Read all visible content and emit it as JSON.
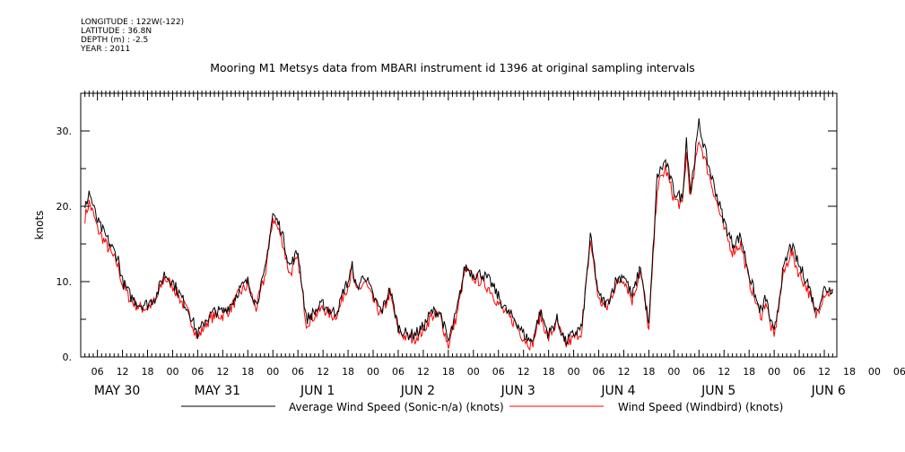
{
  "meta": {
    "longitude": "LONGITUDE : 122W(-122)",
    "latitude": "LATITUDE : 36.8N",
    "depth": "DEPTH (m) : -2.5",
    "year": "YEAR : 2011"
  },
  "chart_data": {
    "type": "line",
    "title": "Mooring M1 Metsys data from MBARI instrument id 1396 at original sampling intervals",
    "ylabel": "knots",
    "xlabel": "",
    "ylim": [
      0,
      35
    ],
    "yticks": [
      0,
      10,
      20,
      30
    ],
    "ytick_labels": [
      "0.",
      "10.",
      "20.",
      "30."
    ],
    "xlim_hours": [
      2,
      183
    ],
    "hour_tick_labels": [
      "06",
      "12",
      "18",
      "00",
      "06",
      "12",
      "18",
      "00",
      "06",
      "12",
      "18",
      "00",
      "06",
      "12",
      "18",
      "00",
      "06",
      "12",
      "18",
      "00",
      "06",
      "12",
      "18",
      "00",
      "06",
      "12",
      "18",
      "00",
      "06",
      "12",
      "18",
      "00",
      "06",
      "12",
      "18",
      "00"
    ],
    "day_labels": [
      "MAY 30",
      "MAY 31",
      "JUN  1",
      "JUN  2",
      "JUN  3",
      "JUN  4",
      "JUN  5",
      "JUN  6"
    ],
    "legend_position": "bottom",
    "series": [
      {
        "name": "Average Wind Speed (Sonic-n/a) (knots)",
        "color": "#000000",
        "x": [
          3,
          4,
          5,
          6,
          7,
          8,
          9,
          10,
          11,
          12,
          14,
          16,
          18,
          20,
          22,
          24,
          26,
          28,
          30,
          32,
          34,
          36,
          38,
          40,
          42,
          44,
          46,
          48,
          50,
          52,
          54,
          56,
          58,
          60,
          62,
          63,
          64,
          65,
          66,
          67,
          68,
          70,
          72,
          74,
          76,
          78,
          80,
          82,
          84,
          86,
          88,
          90,
          92,
          94,
          96,
          98,
          100,
          102,
          104,
          106,
          108,
          110,
          112,
          114,
          116,
          118,
          120,
          122,
          124,
          126,
          128,
          130,
          132,
          134,
          136,
          138,
          140,
          142,
          144,
          146,
          147,
          148,
          150,
          152,
          154,
          156,
          158,
          160,
          162,
          163,
          164,
          165,
          166,
          167,
          168,
          169,
          170,
          172,
          174,
          176,
          178,
          180,
          182
        ],
        "y": [
          19.5,
          22,
          20,
          18,
          17,
          16,
          15,
          14,
          13,
          10,
          8,
          7,
          7,
          8,
          11,
          10,
          8,
          6,
          3,
          5,
          6,
          6,
          7,
          9,
          10,
          7,
          11,
          19,
          17,
          12,
          14,
          5,
          6,
          7,
          6,
          6,
          7,
          9,
          10,
          12,
          9,
          11,
          8,
          6,
          9,
          4,
          3,
          3,
          4,
          6,
          6,
          2,
          6,
          12,
          11,
          11,
          10,
          8,
          6,
          5,
          3,
          2,
          6,
          3,
          5,
          2,
          3,
          4,
          16,
          8,
          7,
          10,
          11,
          8,
          12,
          4,
          24,
          26,
          22,
          21,
          29,
          22,
          31,
          26,
          22,
          18,
          15,
          16,
          11,
          9,
          7,
          6,
          8,
          5,
          3,
          7,
          11,
          15,
          12,
          10,
          6,
          9,
          9
        ]
      },
      {
        "name": "Wind Speed (Windbird) (knots)",
        "color": "#ff0000",
        "x": [
          3,
          4,
          5,
          6,
          7,
          8,
          9,
          10,
          11,
          12,
          14,
          16,
          18,
          20,
          22,
          24,
          26,
          28,
          30,
          32,
          34,
          36,
          38,
          40,
          42,
          44,
          46,
          48,
          50,
          52,
          54,
          56,
          58,
          60,
          62,
          63,
          64,
          65,
          66,
          67,
          68,
          70,
          72,
          74,
          76,
          78,
          80,
          82,
          84,
          86,
          88,
          90,
          92,
          94,
          96,
          98,
          100,
          102,
          104,
          106,
          108,
          110,
          112,
          114,
          116,
          118,
          120,
          122,
          124,
          126,
          128,
          130,
          132,
          134,
          136,
          138,
          140,
          142,
          144,
          146,
          147,
          148,
          150,
          152,
          154,
          156,
          158,
          160,
          162,
          163,
          164,
          165,
          166,
          167,
          168,
          169,
          170,
          172,
          174,
          176,
          178,
          180,
          182
        ],
        "y": [
          18.5,
          20.5,
          19,
          17,
          16,
          15,
          14,
          13,
          12,
          9.5,
          7.5,
          6.5,
          6.5,
          7.5,
          10.5,
          9.5,
          7.5,
          5.5,
          2.5,
          4.5,
          5.5,
          5.5,
          6.5,
          8.5,
          9.5,
          6.5,
          10.5,
          18.5,
          16,
          11,
          13,
          4.5,
          5.5,
          6.5,
          5.5,
          5.5,
          6.5,
          8.5,
          9.5,
          11.5,
          8.5,
          10,
          7.5,
          5.5,
          8.5,
          3.5,
          2.5,
          2.5,
          3.5,
          5.5,
          5.5,
          1.5,
          5.5,
          11.5,
          10.5,
          10,
          9,
          7,
          5.5,
          4.5,
          2.5,
          1.5,
          5.5,
          2.5,
          4.5,
          1.5,
          2.5,
          3.5,
          15.5,
          7.5,
          6.5,
          9.5,
          10.5,
          7.5,
          11.5,
          3.5,
          22.5,
          25,
          21,
          20,
          27,
          21,
          29,
          25,
          21,
          17,
          14,
          15,
          10,
          8.5,
          6.5,
          5.5,
          7.5,
          4.5,
          2.5,
          6.5,
          10.5,
          14,
          11,
          9,
          5.5,
          8.5,
          8.5
        ]
      }
    ]
  }
}
